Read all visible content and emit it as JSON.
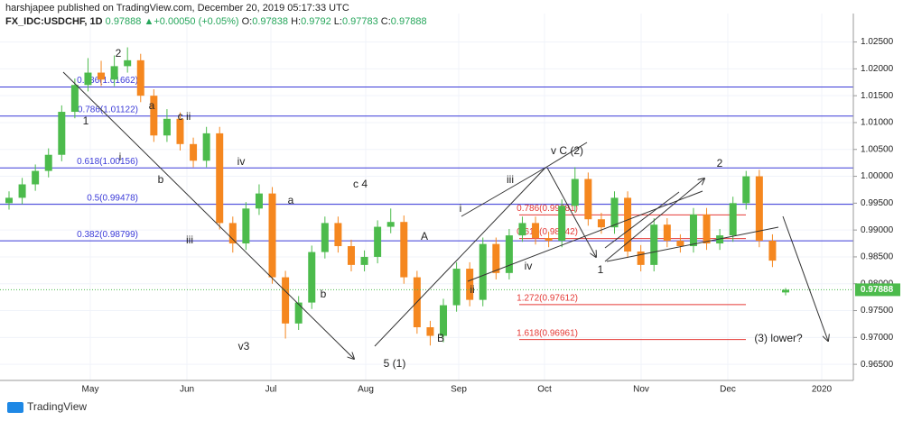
{
  "header": {
    "byline": "harshjapee published on TradingView.com, December 20, 2019 05:17:33 UTC",
    "symbol": "FX_IDC:USDCHF, 1D",
    "change": "▲+0.00050 (+0.05%)",
    "ohlc_labels": [
      "O:",
      "H:",
      "L:",
      "C:"
    ]
  },
  "footer": {
    "brand": "TradingView"
  },
  "chart_data": {
    "type": "candlestick",
    "up_color": "#4cbb4c",
    "down_color": "#f5871f",
    "grid": true,
    "ylim": [
      0.962,
      1.0303
    ],
    "yticks": [
      {
        "value": 0.965,
        "label": "0.96500"
      },
      {
        "value": 0.97,
        "label": "0.97000"
      },
      {
        "value": 0.975,
        "label": "0.97500"
      },
      {
        "value": 0.98,
        "label": "0.98000"
      },
      {
        "value": 0.985,
        "label": "0.98500"
      },
      {
        "value": 0.99,
        "label": "0.99000"
      },
      {
        "value": 0.995,
        "label": "0.99500"
      },
      {
        "value": 1.0,
        "label": "1.00000"
      },
      {
        "value": 1.005,
        "label": "1.00500"
      },
      {
        "value": 1.01,
        "label": "1.01000"
      },
      {
        "value": 1.015,
        "label": "1.01500"
      },
      {
        "value": 1.02,
        "label": "1.02000"
      },
      {
        "value": 1.025,
        "label": "1.02500"
      }
    ],
    "x_labels": [
      "May",
      "Jun",
      "Jul",
      "Aug",
      "Sep",
      "Oct",
      "Nov",
      "Dec",
      "2020"
    ],
    "open": [
      0.995,
      0.996,
      0.9985,
      1.001,
      1.004,
      1.012,
      1.017,
      1.0193,
      1.018,
      1.0205,
      1.0216,
      1.015,
      1.0076,
      1.0107,
      1.006,
      1.0029,
      1.008,
      0.9913,
      0.9875,
      0.994,
      0.9968,
      0.9812,
      0.9726,
      0.9765,
      0.9859,
      0.9913,
      0.987,
      0.9835,
      0.985,
      0.9906,
      0.9915,
      0.9812,
      0.9719,
      0.9703,
      0.976,
      0.9828,
      0.977,
      0.9874,
      0.982,
      0.989,
      0.9913,
      0.9885,
      0.988,
      0.9945,
      0.9995,
      0.992,
      0.9905,
      0.996,
      0.986,
      0.9835,
      0.991,
      0.988,
      0.987,
      0.9929,
      0.9875,
      0.989,
      0.995,
      1.0,
      0.988,
      0.97838
    ],
    "high": [
      0.9972,
      0.9997,
      1.0022,
      1.0052,
      1.0132,
      1.0182,
      1.022,
      1.0215,
      1.0225,
      1.024,
      1.0228,
      1.0162,
      1.0125,
      1.0119,
      1.0072,
      1.0092,
      1.0092,
      0.9925,
      0.9952,
      0.9985,
      0.998,
      0.9824,
      0.9777,
      0.9871,
      0.9925,
      0.9925,
      0.9882,
      0.9862,
      0.9918,
      0.994,
      0.9927,
      0.9824,
      0.9731,
      0.9772,
      0.984,
      0.984,
      0.9886,
      0.9886,
      0.9902,
      0.9925,
      0.9925,
      0.9897,
      0.9957,
      1.0017,
      1.0007,
      0.9932,
      0.9972,
      0.9972,
      0.9872,
      0.9922,
      0.9922,
      0.9892,
      0.9941,
      0.9941,
      0.9902,
      0.9962,
      1.001,
      1.0012,
      0.9892,
      0.9792
    ],
    "low": [
      0.9938,
      0.9948,
      0.9973,
      0.9998,
      1.0028,
      1.0108,
      1.0158,
      1.0168,
      1.0168,
      1.0193,
      1.0138,
      1.0064,
      1.0064,
      1.0048,
      1.0017,
      1.0017,
      0.9901,
      0.9858,
      0.9863,
      0.9928,
      0.98,
      0.9698,
      0.9714,
      0.9753,
      0.9847,
      0.9858,
      0.9823,
      0.9823,
      0.9838,
      0.9894,
      0.98,
      0.9707,
      0.9685,
      0.9691,
      0.9748,
      0.9758,
      0.9758,
      0.9808,
      0.9808,
      0.9878,
      0.9873,
      0.9868,
      0.9868,
      0.9933,
      0.9908,
      0.9893,
      0.9893,
      0.9848,
      0.9823,
      0.9823,
      0.9868,
      0.9858,
      0.9858,
      0.9863,
      0.9863,
      0.9878,
      0.9938,
      0.9868,
      0.9831,
      0.97783
    ],
    "close": [
      0.996,
      0.9985,
      1.001,
      1.004,
      1.012,
      1.017,
      1.0193,
      1.018,
      1.0205,
      1.0216,
      1.015,
      1.0076,
      1.0107,
      1.006,
      1.0029,
      1.008,
      0.9913,
      0.9875,
      0.994,
      0.9968,
      0.9812,
      0.9726,
      0.9765,
      0.9859,
      0.9913,
      0.987,
      0.9835,
      0.985,
      0.9906,
      0.9915,
      0.9812,
      0.9719,
      0.9703,
      0.976,
      0.9828,
      0.977,
      0.9874,
      0.982,
      0.989,
      0.9913,
      0.9885,
      0.988,
      0.9945,
      0.9995,
      0.992,
      0.9905,
      0.996,
      0.986,
      0.9835,
      0.991,
      0.988,
      0.987,
      0.9929,
      0.9875,
      0.989,
      0.995,
      1.0,
      0.988,
      0.9843,
      0.97888
    ],
    "fib_retracement": {
      "color": "#3a3ad8",
      "levels": [
        {
          "value": 1.01662,
          "label": "0.886(1.01662)"
        },
        {
          "value": 1.01122,
          "label": "0.786(1.01122)"
        },
        {
          "value": 1.00156,
          "label": "0.618(1.00156)"
        },
        {
          "value": 0.99478,
          "label": "0.5(0.99478)"
        },
        {
          "value": 0.98799,
          "label": "0.382(0.98799)"
        }
      ]
    },
    "fib_extension": {
      "color": "#e53935",
      "levels": [
        {
          "value": 0.99281,
          "label": "0.786(0.99281)"
        },
        {
          "value": 0.98842,
          "label": "0.618(0.98842)"
        },
        {
          "value": 0.97612,
          "label": "1.272(0.97612)"
        },
        {
          "value": 0.96961,
          "label": "1.618(0.96961)"
        }
      ]
    },
    "annotations": [
      "2",
      "a",
      "c ii",
      "1",
      "i",
      "b",
      "iii",
      "iv",
      "v3",
      "a",
      "b",
      "c 4",
      "5 (1)",
      "A",
      "B",
      "i",
      "ii",
      "iii",
      "iv",
      "v C (2)",
      "1",
      "2",
      "(3) lower?"
    ]
  }
}
